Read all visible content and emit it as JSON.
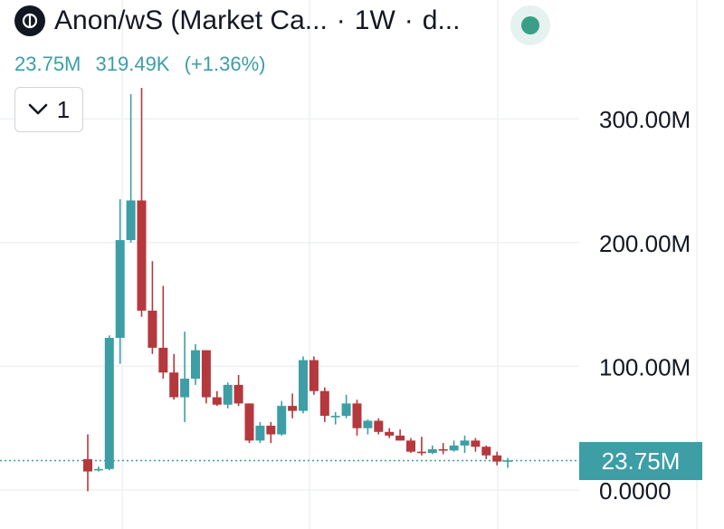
{
  "header": {
    "title": "Anon/wS (Market Ca...",
    "interval": "1W",
    "source": "d...",
    "separator": "·"
  },
  "stats": {
    "close": "23.75M",
    "change": "319.49K",
    "change_pct": "(+1.36%)"
  },
  "indicator_toggle": {
    "count": "1"
  },
  "last_price_label": "23.75M",
  "colors": {
    "up": "#3d9ea6",
    "down": "#b5383d",
    "live": "#3a9f87",
    "grid": "#eef0f3"
  },
  "chart_data": {
    "type": "candlestick",
    "title": "Anon/wS (Market Ca...",
    "y_axis": {
      "labels": [
        "100.00M",
        "200.00M",
        "300.00M",
        "0.0000"
      ],
      "range": [
        -8,
        370
      ],
      "position": "right"
    },
    "last_value": 23.75,
    "unit": "M",
    "grid": true,
    "candles": [
      {
        "o": 25,
        "h": 45,
        "l": -1,
        "c": 15
      },
      {
        "o": 17,
        "h": 19,
        "l": 15,
        "c": 17
      },
      {
        "o": 17,
        "h": 125,
        "l": 16,
        "c": 123
      },
      {
        "o": 123,
        "h": 235,
        "l": 102,
        "c": 202
      },
      {
        "o": 202,
        "h": 320,
        "l": 200,
        "c": 234
      },
      {
        "o": 234,
        "h": 325,
        "l": 140,
        "c": 145
      },
      {
        "o": 145,
        "h": 185,
        "l": 110,
        "c": 115
      },
      {
        "o": 115,
        "h": 165,
        "l": 90,
        "c": 95
      },
      {
        "o": 95,
        "h": 110,
        "l": 73,
        "c": 75
      },
      {
        "o": 75,
        "h": 128,
        "l": 55,
        "c": 90
      },
      {
        "o": 90,
        "h": 118,
        "l": 85,
        "c": 113
      },
      {
        "o": 113,
        "h": 113,
        "l": 70,
        "c": 75
      },
      {
        "o": 75,
        "h": 80,
        "l": 68,
        "c": 69
      },
      {
        "o": 69,
        "h": 87,
        "l": 66,
        "c": 85
      },
      {
        "o": 85,
        "h": 93,
        "l": 68,
        "c": 70
      },
      {
        "o": 70,
        "h": 70,
        "l": 38,
        "c": 40
      },
      {
        "o": 40,
        "h": 55,
        "l": 38,
        "c": 52
      },
      {
        "o": 52,
        "h": 55,
        "l": 38,
        "c": 45
      },
      {
        "o": 45,
        "h": 72,
        "l": 44,
        "c": 68
      },
      {
        "o": 68,
        "h": 78,
        "l": 58,
        "c": 64
      },
      {
        "o": 64,
        "h": 108,
        "l": 62,
        "c": 105
      },
      {
        "o": 105,
        "h": 108,
        "l": 77,
        "c": 80
      },
      {
        "o": 80,
        "h": 83,
        "l": 55,
        "c": 60
      },
      {
        "o": 60,
        "h": 63,
        "l": 53,
        "c": 60
      },
      {
        "o": 60,
        "h": 77,
        "l": 58,
        "c": 70
      },
      {
        "o": 70,
        "h": 73,
        "l": 44,
        "c": 50
      },
      {
        "o": 50,
        "h": 57,
        "l": 45,
        "c": 56
      },
      {
        "o": 56,
        "h": 58,
        "l": 45,
        "c": 47
      },
      {
        "o": 47,
        "h": 50,
        "l": 42,
        "c": 44
      },
      {
        "o": 44,
        "h": 49,
        "l": 40,
        "c": 40
      },
      {
        "o": 40,
        "h": 42,
        "l": 30,
        "c": 31
      },
      {
        "o": 31,
        "h": 43,
        "l": 28,
        "c": 30
      },
      {
        "o": 30,
        "h": 36,
        "l": 29,
        "c": 33
      },
      {
        "o": 33,
        "h": 38,
        "l": 29,
        "c": 32
      },
      {
        "o": 32,
        "h": 40,
        "l": 31,
        "c": 36
      },
      {
        "o": 36,
        "h": 44,
        "l": 30,
        "c": 40
      },
      {
        "o": 40,
        "h": 42,
        "l": 31,
        "c": 35
      },
      {
        "o": 35,
        "h": 36,
        "l": 25,
        "c": 28
      },
      {
        "o": 28,
        "h": 31,
        "l": 20,
        "c": 23
      },
      {
        "o": 23,
        "h": 26,
        "l": 18,
        "c": 24
      }
    ]
  }
}
